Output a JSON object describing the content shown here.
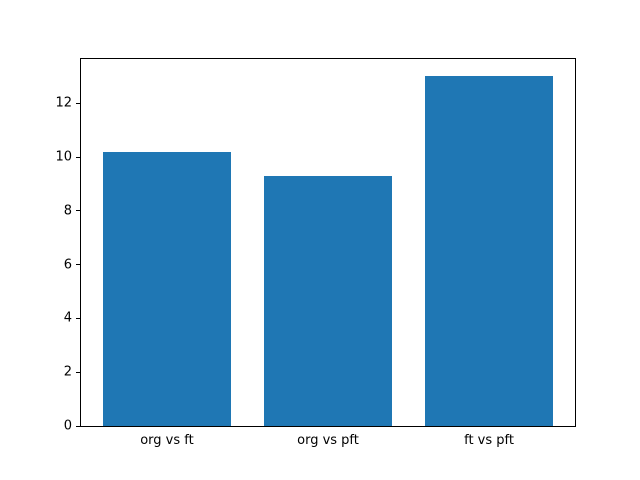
{
  "chart_data": {
    "type": "bar",
    "title": "",
    "xlabel": "",
    "ylabel": "",
    "categories": [
      "org vs ft",
      "org vs pft",
      "ft vs pft"
    ],
    "values": [
      10.2,
      9.3,
      13.0
    ],
    "yticks": [
      0,
      2,
      4,
      6,
      8,
      10,
      12
    ],
    "ylim": [
      0,
      13.65
    ],
    "bar_color": "#1f77b4",
    "axes_edge_color": "#000000",
    "background_color": "#ffffff",
    "grid": false,
    "legend": "none"
  }
}
